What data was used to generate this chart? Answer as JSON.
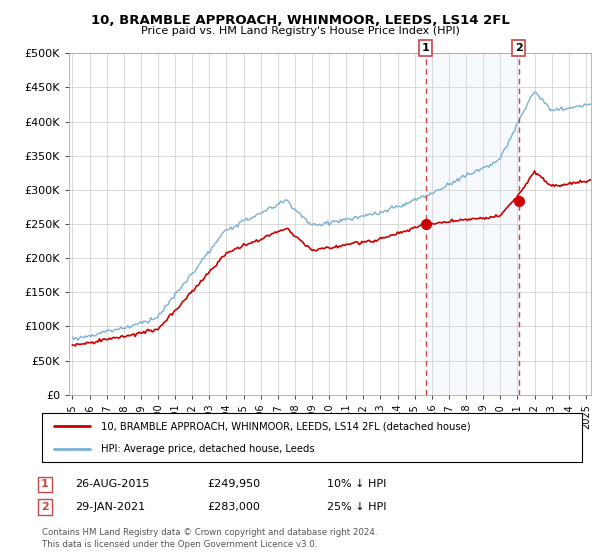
{
  "title": "10, BRAMBLE APPROACH, WHINMOOR, LEEDS, LS14 2FL",
  "subtitle": "Price paid vs. HM Land Registry's House Price Index (HPI)",
  "legend_line1": "10, BRAMBLE APPROACH, WHINMOOR, LEEDS, LS14 2FL (detached house)",
  "legend_line2": "HPI: Average price, detached house, Leeds",
  "footnote": "Contains HM Land Registry data © Crown copyright and database right 2024.\nThis data is licensed under the Open Government Licence v3.0.",
  "sale1_date": "26-AUG-2015",
  "sale1_price": "£249,950",
  "sale1_hpi": "10% ↓ HPI",
  "sale2_date": "29-JAN-2021",
  "sale2_price": "£283,000",
  "sale2_hpi": "25% ↓ HPI",
  "hpi_color": "#7ab0d4",
  "price_color": "#cc0000",
  "marker_color": "#cc0000",
  "vline_color": "#cc4444",
  "shade_color": "#ddeeff",
  "background_color": "#ffffff",
  "grid_color": "#cccccc",
  "ylim": [
    0,
    500000
  ],
  "yticks": [
    0,
    50000,
    100000,
    150000,
    200000,
    250000,
    300000,
    350000,
    400000,
    450000,
    500000
  ],
  "sale1_x": 2015.65,
  "sale1_y": 249950,
  "sale2_x": 2021.08,
  "sale2_y": 283000,
  "xmin": 1994.8,
  "xmax": 2025.3
}
